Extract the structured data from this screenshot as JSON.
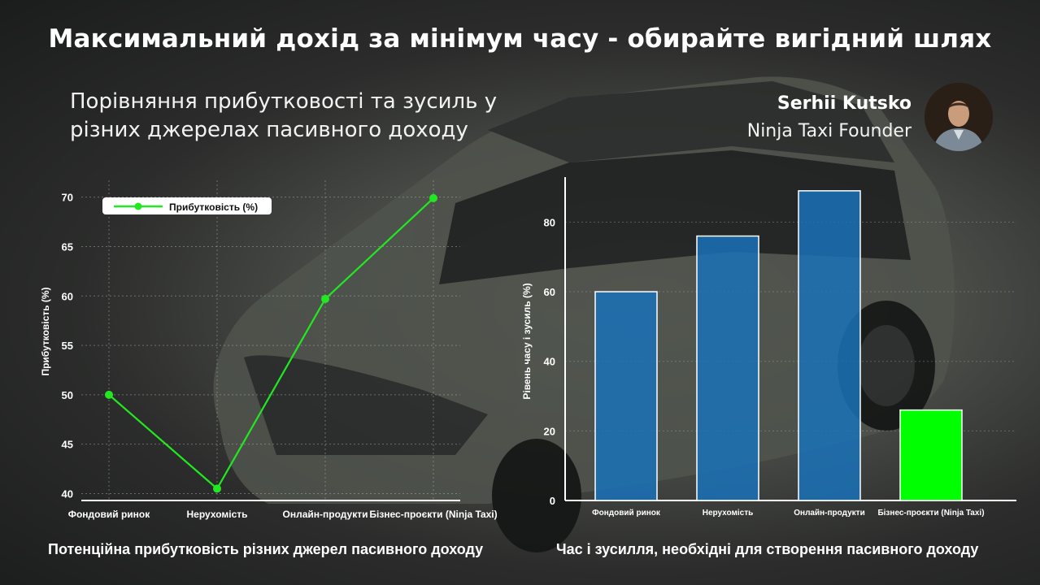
{
  "title": "Максимальний дохід за мінімум часу - обирайте вигідний шлях",
  "subtitle": "Порівняння прибутковості та зусиль у різних джерелах пасивного доходу",
  "author": {
    "name": "Serhii Kutsko",
    "role": "Ninja Taxi Founder"
  },
  "colors": {
    "line": "#22e822",
    "bar": "#1a72b8",
    "bar_highlight": "#00ff00",
    "text": "#ffffff"
  },
  "chart_data": [
    {
      "type": "line",
      "categories": [
        "Фондовий ринок",
        "Нерухомість",
        "Онлайн-продукти",
        "Бізнес-проєкти (Ninja Taxi)"
      ],
      "series": [
        {
          "name": "Прибутковість (%)",
          "values": [
            50,
            40.5,
            59.7,
            69.9
          ]
        }
      ],
      "yticks": [
        "40",
        "45",
        "50",
        "55",
        "60",
        "65",
        "70"
      ],
      "ylim": [
        39.3,
        71.7
      ],
      "ylabel": "Прибутковість (%)",
      "xlabel": "",
      "grid": true,
      "legend": "top-left",
      "caption": "Потенційна прибутковість різних джерел пасивного доходу"
    },
    {
      "type": "bar",
      "categories": [
        "Фондовий ринок",
        "Нерухомість",
        "Онлайн-продукти",
        "Бізнес-проєкти (Ninja Taxi)"
      ],
      "values": [
        60,
        76,
        89,
        26
      ],
      "highlight_index": 3,
      "yticks": [
        "0",
        "20",
        "40",
        "60",
        "80"
      ],
      "ylim": [
        0,
        92
      ],
      "ylabel": "Рівень часу і зусиль (%)",
      "xlabel": "",
      "grid": true,
      "caption": "Час і зусилля, необхідні для створення пасивного доходу"
    }
  ]
}
